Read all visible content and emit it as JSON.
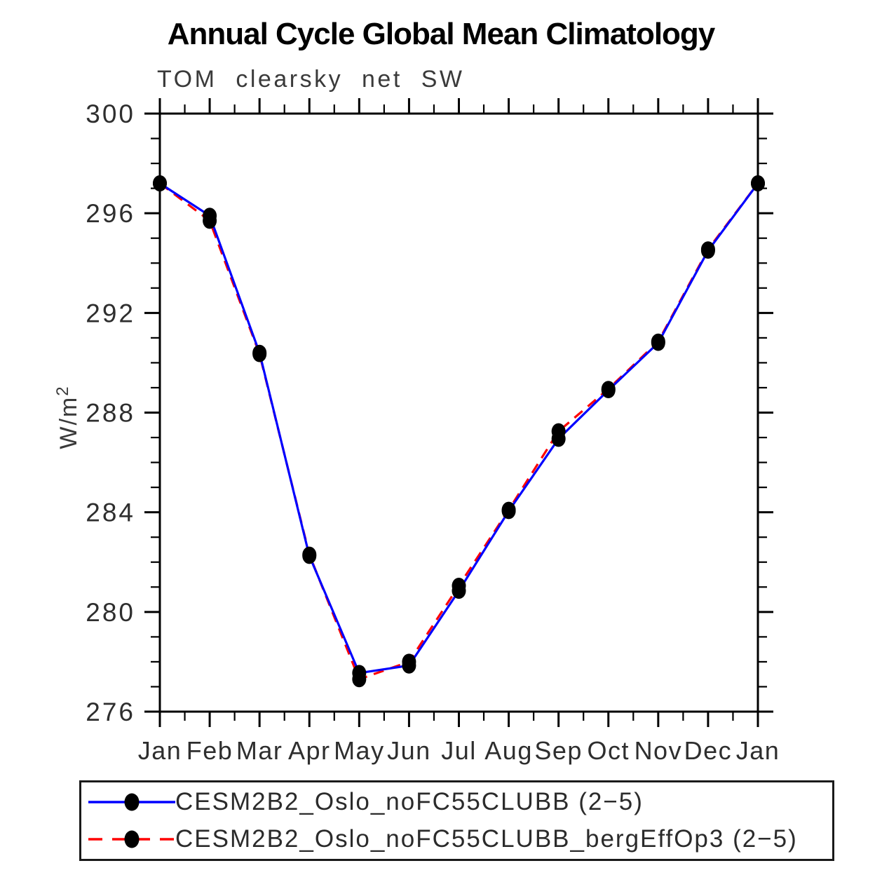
{
  "chart_data": {
    "type": "line",
    "title": "Annual Cycle Global Mean Climatology",
    "subtitle": "TOM clearsky net SW",
    "ylabel": "W/m²",
    "ylabel_base": "W/m",
    "ylabel_sup": "2",
    "xlabel": "",
    "x_tick_labels": [
      "Jan",
      "Feb",
      "Mar",
      "Apr",
      "May",
      "Jun",
      "Jul",
      "Aug",
      "Sep",
      "Oct",
      "Nov",
      "Dec",
      "Jan"
    ],
    "y_tick_labels": [
      "300",
      "296",
      "292",
      "288",
      "284",
      "280",
      "276"
    ],
    "ylim": [
      276,
      300
    ],
    "y_major_step": 4,
    "y_minor_step": 1,
    "x_minor_per_interval": 1,
    "grid": false,
    "legend_position": "bottom",
    "axis_color": "#000000",
    "marker_color": "#000000",
    "series": [
      {
        "name": "CESM2B2_Oslo_noFC55CLUBB (2−5)",
        "color": "#0000ff",
        "line_style": "solid",
        "marker": "filled-circle",
        "values": [
          297.2,
          295.9,
          290.4,
          282.25,
          277.55,
          277.85,
          280.85,
          284.05,
          286.95,
          288.9,
          290.8,
          294.5,
          297.2
        ]
      },
      {
        "name": "CESM2B2_Oslo_noFC55CLUBB_bergEffOp3 (2−5)",
        "color": "#ff0000",
        "line_style": "dashed",
        "marker": "filled-circle",
        "values": [
          297.2,
          295.7,
          290.35,
          282.3,
          277.3,
          278.0,
          281.05,
          284.1,
          287.25,
          288.95,
          290.85,
          294.55,
          297.2
        ]
      }
    ]
  }
}
